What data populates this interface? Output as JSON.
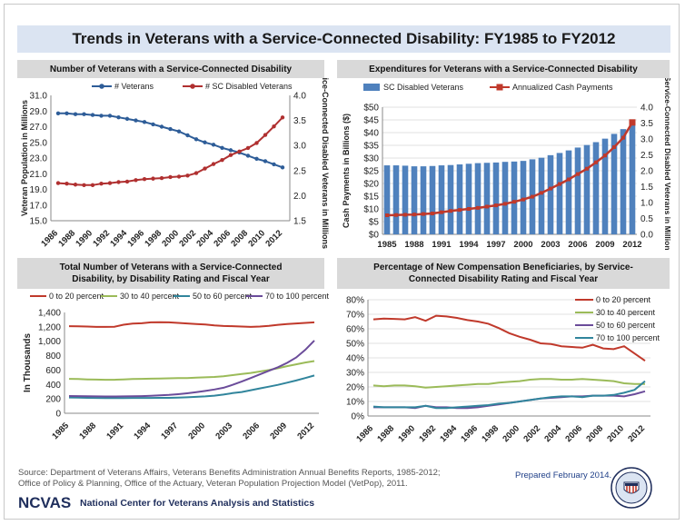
{
  "main_title": "Trends in Veterans with a Service-Connected Disability: FY1985 to FY2012",
  "source_line1": "Source: Department of Veterans Affairs, Veterans Benefits Administration Annual Benefits Reports, 1985-2012;",
  "source_line2": "Office of Policy & Planning, Office of the Actuary, Veteran Population Projection Model (VetPop), 2011.",
  "prepared": "Prepared February 2014.",
  "org_abbrev": "NCVAS",
  "org_name": "National Center for Veterans Analysis and Statistics",
  "colors": {
    "blue": "#2e5d98",
    "red": "#c0392b",
    "green": "#9bbb59",
    "teal": "#31859c",
    "purple": "#6b4c9a",
    "bar": "#4f81bd",
    "darkred": "#b03030"
  },
  "chart_data": [
    {
      "id": "c1",
      "type": "line",
      "title": "Number of Veterans with a  Service-Connected Disability",
      "ylabel": "Veteran Population in Millions",
      "y2label": "Service-Connected Disabled Veterans in Millions",
      "x": [
        1986,
        1987,
        1988,
        1989,
        1990,
        1991,
        1992,
        1993,
        1994,
        1995,
        1996,
        1997,
        1998,
        1999,
        2000,
        2001,
        2002,
        2003,
        2004,
        2005,
        2006,
        2007,
        2008,
        2009,
        2010,
        2011,
        2012
      ],
      "xticks": [
        "1986",
        "1988",
        "1990",
        "1992",
        "1994",
        "1996",
        "1998",
        "2000",
        "2002",
        "2004",
        "2006",
        "2008",
        "2010",
        "2012"
      ],
      "ylim": [
        15,
        31
      ],
      "yticks": [
        "15.0",
        "17.0",
        "19.0",
        "21.0",
        "23.0",
        "25.0",
        "27.0",
        "29.0",
        "31.0"
      ],
      "y2lim": [
        1.5,
        4.0
      ],
      "y2ticks": [
        "1.5",
        "2.0",
        "2.5",
        "3.0",
        "3.5",
        "4.0"
      ],
      "series": [
        {
          "name": "# Veterans",
          "axis": "left",
          "values": [
            28.7,
            28.7,
            28.6,
            28.6,
            28.5,
            28.4,
            28.4,
            28.2,
            28.0,
            27.8,
            27.6,
            27.3,
            27.0,
            26.7,
            26.4,
            25.9,
            25.4,
            25.0,
            24.7,
            24.3,
            24.0,
            23.7,
            23.3,
            22.9,
            22.6,
            22.2,
            21.8
          ]
        },
        {
          "name": "# SC Disabled Veterans",
          "axis": "right",
          "values": [
            2.25,
            2.24,
            2.22,
            2.21,
            2.21,
            2.24,
            2.25,
            2.27,
            2.28,
            2.31,
            2.33,
            2.34,
            2.35,
            2.37,
            2.38,
            2.4,
            2.45,
            2.54,
            2.63,
            2.71,
            2.81,
            2.88,
            2.95,
            3.05,
            3.21,
            3.38,
            3.56
          ]
        }
      ]
    },
    {
      "id": "c2",
      "type": "bar+line",
      "title": "Expenditures for Veterans with a Service-Connected Disability",
      "ylabel": "Cash Payments in Billions ($)",
      "y2label": "Service-Connected Disabled Veterans in Millions",
      "x": [
        1985,
        1986,
        1987,
        1988,
        1989,
        1990,
        1991,
        1992,
        1993,
        1994,
        1995,
        1996,
        1997,
        1998,
        1999,
        2000,
        2001,
        2002,
        2003,
        2004,
        2005,
        2006,
        2007,
        2008,
        2009,
        2010,
        2011,
        2012
      ],
      "xticks": [
        "1985",
        "1988",
        "1991",
        "1994",
        "1997",
        "2000",
        "2003",
        "2006",
        "2009",
        "2012"
      ],
      "ylim": [
        0,
        50
      ],
      "yticks": [
        "$0",
        "$5",
        "$10",
        "$15",
        "$20",
        "$25",
        "$30",
        "$35",
        "$40",
        "$45",
        "$50"
      ],
      "y2lim": [
        0,
        4.0
      ],
      "y2ticks": [
        "0.0",
        "0.5",
        "1.0",
        "1.5",
        "2.0",
        "2.5",
        "3.0",
        "3.5",
        "4.0"
      ],
      "series": [
        {
          "name": "SC Disabled Veterans",
          "type": "bar",
          "axis": "right",
          "values": [
            2.17,
            2.17,
            2.16,
            2.14,
            2.14,
            2.15,
            2.17,
            2.18,
            2.2,
            2.22,
            2.24,
            2.25,
            2.26,
            2.28,
            2.29,
            2.31,
            2.36,
            2.41,
            2.49,
            2.56,
            2.64,
            2.73,
            2.81,
            2.9,
            3.01,
            3.16,
            3.31,
            3.48
          ]
        },
        {
          "name": "Annualized Cash Payments",
          "type": "line",
          "axis": "left",
          "values": [
            7.5,
            7.6,
            7.7,
            7.8,
            8.0,
            8.2,
            8.7,
            9.2,
            9.6,
            10.0,
            10.4,
            10.9,
            11.4,
            12.0,
            12.8,
            13.7,
            14.8,
            16.3,
            18.0,
            19.8,
            21.6,
            23.7,
            25.8,
            28.3,
            31.0,
            34.3,
            38.0,
            44.0
          ]
        }
      ]
    },
    {
      "id": "c3",
      "type": "line",
      "title": "Total Number of Veterans with a  Service-Connected Disability, by Disability Rating and Fiscal Year",
      "ylabel": "In Thousands",
      "x": [
        1985,
        1986,
        1987,
        1988,
        1989,
        1990,
        1991,
        1992,
        1993,
        1994,
        1995,
        1996,
        1997,
        1998,
        1999,
        2000,
        2001,
        2002,
        2003,
        2004,
        2005,
        2006,
        2007,
        2008,
        2009,
        2010,
        2011,
        2012
      ],
      "xticks": [
        "1985",
        "1988",
        "1991",
        "1994",
        "1997",
        "2000",
        "2003",
        "2006",
        "2009",
        "2012"
      ],
      "ylim": [
        0,
        1400
      ],
      "yticks": [
        "0",
        "200",
        "400",
        "600",
        "800",
        "1,000",
        "1,200",
        "1,400"
      ],
      "series": [
        {
          "name": "0 to 20 percent",
          "values": [
            1210,
            1208,
            1205,
            1200,
            1200,
            1202,
            1230,
            1245,
            1250,
            1262,
            1265,
            1262,
            1255,
            1248,
            1240,
            1232,
            1220,
            1212,
            1210,
            1205,
            1200,
            1205,
            1215,
            1228,
            1238,
            1248,
            1255,
            1262
          ]
        },
        {
          "name": "30 to 40 percent",
          "values": [
            478,
            475,
            470,
            468,
            465,
            465,
            470,
            475,
            478,
            480,
            482,
            485,
            488,
            490,
            495,
            500,
            505,
            515,
            530,
            545,
            560,
            580,
            600,
            625,
            655,
            680,
            705,
            725
          ]
        },
        {
          "name": "50 to 60 percent",
          "values": [
            220,
            218,
            215,
            213,
            212,
            212,
            212,
            213,
            213,
            213,
            214,
            215,
            218,
            222,
            228,
            235,
            245,
            260,
            280,
            295,
            320,
            345,
            370,
            395,
            425,
            455,
            490,
            525
          ]
        },
        {
          "name": "70 to 100 percent",
          "values": [
            240,
            238,
            236,
            234,
            233,
            233,
            234,
            236,
            238,
            242,
            248,
            255,
            265,
            278,
            292,
            310,
            330,
            355,
            395,
            440,
            490,
            540,
            590,
            640,
            700,
            775,
            880,
            1010
          ]
        }
      ]
    },
    {
      "id": "c4",
      "type": "line",
      "title": "Percentage of New Compensation Beneficiaries, by Service-Connected Disability Rating and Fiscal Year",
      "x": [
        1986,
        1987,
        1988,
        1989,
        1990,
        1991,
        1992,
        1993,
        1994,
        1995,
        1996,
        1997,
        1998,
        1999,
        2000,
        2001,
        2002,
        2003,
        2004,
        2005,
        2006,
        2007,
        2008,
        2009,
        2010,
        2011,
        2012
      ],
      "xticks": [
        "1986",
        "1988",
        "1990",
        "1992",
        "1994",
        "1996",
        "1998",
        "2000",
        "2002",
        "2004",
        "2006",
        "2008",
        "2010",
        "2012"
      ],
      "ylim": [
        0,
        80
      ],
      "yticks": [
        "0%",
        "10%",
        "20%",
        "30%",
        "40%",
        "50%",
        "60%",
        "70%",
        "80%"
      ],
      "series": [
        {
          "name": "0 to 20 percent",
          "values": [
            66.5,
            67,
            66.8,
            66.5,
            68,
            65.5,
            69,
            68.5,
            67.5,
            66,
            65,
            63.5,
            60.5,
            57,
            54.5,
            52.5,
            50,
            49.5,
            48,
            47.5,
            47,
            49,
            46.5,
            46,
            48,
            43,
            38
          ]
        },
        {
          "name": "30 to 40 percent",
          "values": [
            21,
            20.5,
            21,
            21,
            20.5,
            19.5,
            20,
            20.5,
            21,
            21.5,
            22,
            22,
            23,
            23.5,
            24,
            25,
            25.5,
            25.5,
            25,
            25,
            25.5,
            25,
            24.5,
            24,
            22.5,
            22,
            22
          ]
        },
        {
          "name": "50 to 60 percent",
          "values": [
            6,
            6,
            6,
            6,
            5.5,
            7,
            6,
            6,
            5.5,
            5.5,
            6,
            7,
            8,
            9,
            10,
            11,
            12,
            12.5,
            13,
            13.5,
            13.5,
            14,
            14,
            14,
            13.5,
            15,
            17
          ]
        },
        {
          "name": "70 to 100 percent",
          "values": [
            6.5,
            6,
            6,
            6,
            6,
            7,
            5.5,
            5.5,
            6,
            6.5,
            7,
            7.5,
            8.5,
            9,
            10,
            11,
            12,
            13,
            13.5,
            13.5,
            13,
            14,
            14,
            14.5,
            16,
            18,
            24
          ]
        }
      ]
    }
  ]
}
